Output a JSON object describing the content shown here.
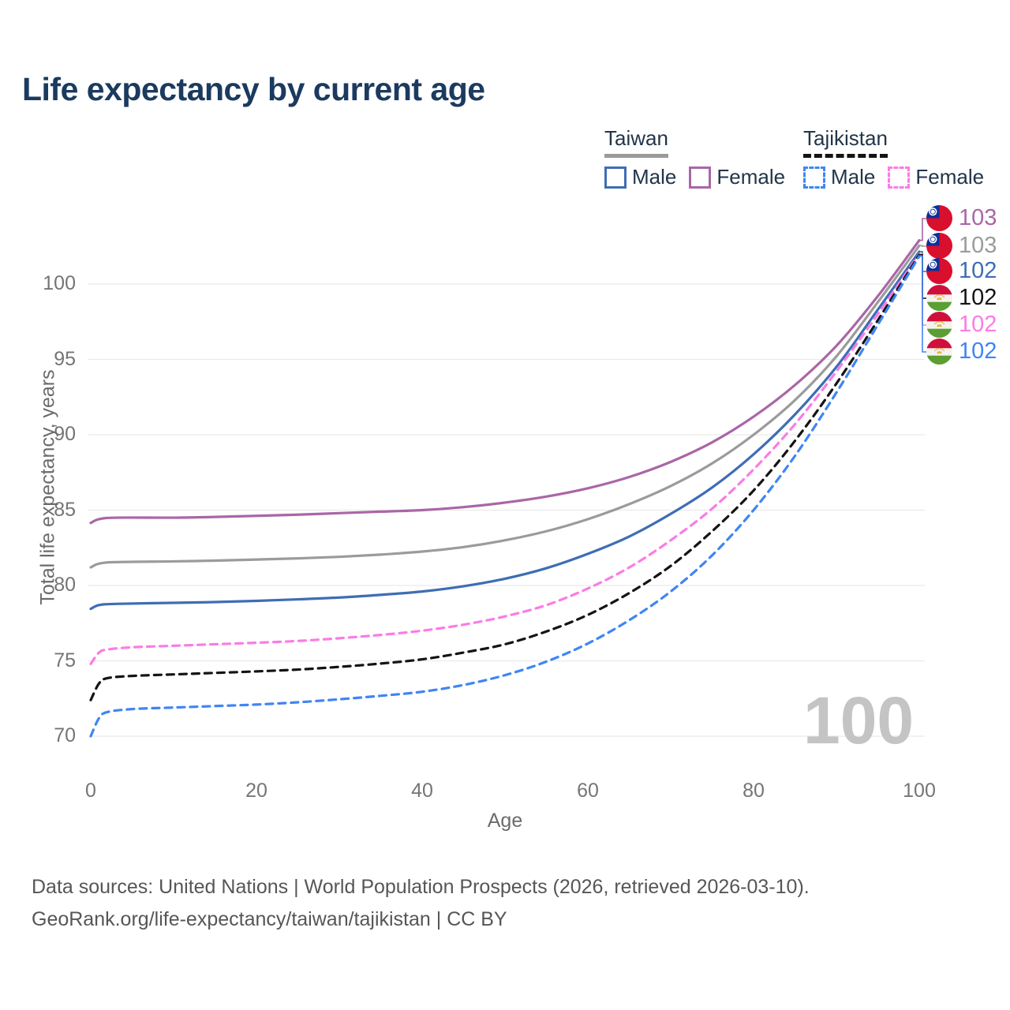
{
  "title": "Life expectancy by current age",
  "watermark": "100",
  "legend": {
    "taiwan": {
      "label": "Taiwan",
      "male": "Male",
      "female": "Female"
    },
    "tajikistan": {
      "label": "Tajikistan",
      "male": "Male",
      "female": "Female"
    }
  },
  "footer": {
    "line1": "Data sources: United Nations | World Population Prospects (2026, retrieved 2026-03-10).",
    "line2": "GeoRank.org/life-expectancy/taiwan/tajikistan | CC BY"
  },
  "end_labels": [
    {
      "flag": "taiwan",
      "value": "103",
      "color": "#aa66a6",
      "series": "taiwan-female"
    },
    {
      "flag": "taiwan",
      "value": "103",
      "color": "#9b9b9b",
      "series": "taiwan-all"
    },
    {
      "flag": "taiwan",
      "value": "102",
      "color": "#3e6db5",
      "series": "taiwan-male"
    },
    {
      "flag": "tajikistan",
      "value": "102",
      "color": "#141414",
      "series": "tajikistan-all"
    },
    {
      "flag": "tajikistan",
      "value": "102",
      "color": "#fb7ce5",
      "series": "tajikistan-female"
    },
    {
      "flag": "tajikistan",
      "value": "102",
      "color": "#3f85f5",
      "series": "tajikistan-male"
    }
  ],
  "chart_data": {
    "type": "line",
    "title": "Life expectancy by current age",
    "xlabel": "Age",
    "ylabel": "Total life expectancy, years",
    "xlim": [
      0,
      100
    ],
    "ylim": [
      68.5,
      104
    ],
    "x_ticks": [
      0,
      20,
      40,
      60,
      80,
      100
    ],
    "y_ticks": [
      70,
      75,
      80,
      85,
      90,
      95,
      100
    ],
    "grid": "horizontal",
    "legend_position": "top-right",
    "series": [
      {
        "id": "taiwan-female",
        "name": "Taiwan Female",
        "style": "solid",
        "color": "#aa66a6",
        "points": [
          [
            0,
            84.15
          ],
          [
            1,
            84.4
          ],
          [
            3,
            84.5
          ],
          [
            10,
            84.5
          ],
          [
            15,
            84.55
          ],
          [
            20,
            84.62
          ],
          [
            25,
            84.7
          ],
          [
            30,
            84.8
          ],
          [
            35,
            84.9
          ],
          [
            40,
            85.0
          ],
          [
            45,
            85.2
          ],
          [
            50,
            85.5
          ],
          [
            55,
            85.9
          ],
          [
            60,
            86.45
          ],
          [
            65,
            87.2
          ],
          [
            70,
            88.2
          ],
          [
            75,
            89.5
          ],
          [
            80,
            91.2
          ],
          [
            85,
            93.3
          ],
          [
            90,
            95.9
          ],
          [
            95,
            99.2
          ],
          [
            100,
            102.9
          ]
        ]
      },
      {
        "id": "taiwan-all",
        "name": "Taiwan Both sexes",
        "style": "solid",
        "color": "#9b9b9b",
        "points": [
          [
            0,
            81.2
          ],
          [
            1,
            81.45
          ],
          [
            3,
            81.55
          ],
          [
            10,
            81.6
          ],
          [
            15,
            81.65
          ],
          [
            20,
            81.72
          ],
          [
            25,
            81.8
          ],
          [
            30,
            81.9
          ],
          [
            35,
            82.05
          ],
          [
            40,
            82.25
          ],
          [
            45,
            82.55
          ],
          [
            50,
            83.0
          ],
          [
            55,
            83.6
          ],
          [
            60,
            84.4
          ],
          [
            65,
            85.4
          ],
          [
            70,
            86.6
          ],
          [
            75,
            88.1
          ],
          [
            80,
            90.0
          ],
          [
            85,
            92.3
          ],
          [
            90,
            95.2
          ],
          [
            95,
            98.8
          ],
          [
            100,
            102.55
          ]
        ]
      },
      {
        "id": "taiwan-male",
        "name": "Taiwan Male",
        "style": "solid",
        "color": "#3e6db5",
        "points": [
          [
            0,
            78.45
          ],
          [
            1,
            78.7
          ],
          [
            3,
            78.78
          ],
          [
            10,
            78.85
          ],
          [
            15,
            78.9
          ],
          [
            20,
            78.98
          ],
          [
            25,
            79.08
          ],
          [
            30,
            79.2
          ],
          [
            35,
            79.38
          ],
          [
            40,
            79.6
          ],
          [
            45,
            79.95
          ],
          [
            50,
            80.45
          ],
          [
            55,
            81.15
          ],
          [
            60,
            82.1
          ],
          [
            65,
            83.25
          ],
          [
            70,
            84.75
          ],
          [
            75,
            86.5
          ],
          [
            80,
            88.7
          ],
          [
            85,
            91.35
          ],
          [
            90,
            94.5
          ],
          [
            95,
            98.3
          ],
          [
            100,
            102.15
          ]
        ]
      },
      {
        "id": "tajikistan-female",
        "name": "Tajikistan Female",
        "style": "dashed",
        "color": "#fb7ce5",
        "points": [
          [
            0,
            74.8
          ],
          [
            1,
            75.55
          ],
          [
            2,
            75.75
          ],
          [
            5,
            75.9
          ],
          [
            10,
            76.0
          ],
          [
            15,
            76.1
          ],
          [
            20,
            76.2
          ],
          [
            25,
            76.32
          ],
          [
            30,
            76.5
          ],
          [
            35,
            76.72
          ],
          [
            40,
            77.0
          ],
          [
            45,
            77.4
          ],
          [
            50,
            77.95
          ],
          [
            55,
            78.7
          ],
          [
            60,
            79.8
          ],
          [
            65,
            81.2
          ],
          [
            70,
            83.0
          ],
          [
            75,
            85.1
          ],
          [
            80,
            87.7
          ],
          [
            85,
            90.7
          ],
          [
            90,
            94.2
          ],
          [
            95,
            98.0
          ],
          [
            100,
            102.0
          ]
        ]
      },
      {
        "id": "tajikistan-all",
        "name": "Tajikistan Both sexes",
        "style": "dashed",
        "color": "#141414",
        "points": [
          [
            0,
            72.4
          ],
          [
            1,
            73.5
          ],
          [
            2,
            73.85
          ],
          [
            5,
            74.0
          ],
          [
            10,
            74.1
          ],
          [
            15,
            74.2
          ],
          [
            20,
            74.3
          ],
          [
            25,
            74.42
          ],
          [
            30,
            74.6
          ],
          [
            35,
            74.82
          ],
          [
            40,
            75.1
          ],
          [
            45,
            75.55
          ],
          [
            50,
            76.1
          ],
          [
            55,
            76.95
          ],
          [
            60,
            78.05
          ],
          [
            65,
            79.5
          ],
          [
            70,
            81.3
          ],
          [
            75,
            83.6
          ],
          [
            80,
            86.3
          ],
          [
            85,
            89.6
          ],
          [
            90,
            93.4
          ],
          [
            95,
            97.6
          ],
          [
            100,
            101.95
          ]
        ]
      },
      {
        "id": "tajikistan-male",
        "name": "Tajikistan Male",
        "style": "dashed",
        "color": "#3f85f5",
        "points": [
          [
            0,
            70.0
          ],
          [
            1,
            71.2
          ],
          [
            2,
            71.6
          ],
          [
            5,
            71.8
          ],
          [
            10,
            71.9
          ],
          [
            15,
            72.0
          ],
          [
            20,
            72.1
          ],
          [
            25,
            72.25
          ],
          [
            30,
            72.45
          ],
          [
            35,
            72.68
          ],
          [
            40,
            72.95
          ],
          [
            45,
            73.4
          ],
          [
            50,
            74.05
          ],
          [
            55,
            74.95
          ],
          [
            60,
            76.15
          ],
          [
            65,
            77.7
          ],
          [
            70,
            79.6
          ],
          [
            75,
            82.0
          ],
          [
            80,
            85.0
          ],
          [
            85,
            88.6
          ],
          [
            90,
            92.8
          ],
          [
            95,
            97.3
          ],
          [
            100,
            101.85
          ]
        ]
      }
    ]
  }
}
